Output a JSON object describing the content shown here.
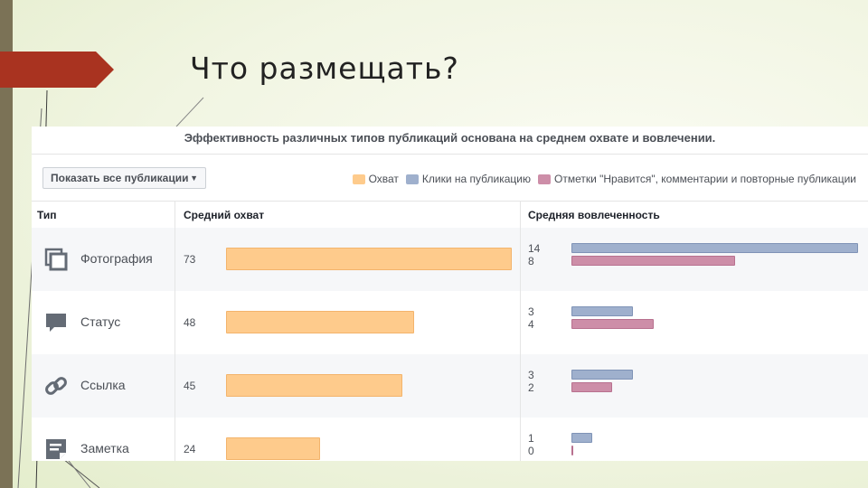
{
  "slide": {
    "title": "Что размещать?"
  },
  "panel": {
    "header": "Эффективность различных типов публикаций основана на среднем охвате и вовлечении.",
    "filter": {
      "label": "Показать все публикации",
      "caret": "▼"
    },
    "legend": [
      {
        "label": "Охват",
        "color": "#fecb8c"
      },
      {
        "label": "Клики на публикацию",
        "color": "#9fb0cd"
      },
      {
        "label": "Отметки \"Нравится\", комментарии и повторные публикации",
        "color": "#cd8ea8"
      }
    ],
    "columns": {
      "type": "Тип",
      "reach": "Средний охват",
      "engagement": "Средняя вовлеченность"
    },
    "scale": {
      "reach_max": 73,
      "engagement_max": 14
    },
    "rows": [
      {
        "icon": "photo-icon",
        "name": "Фотография",
        "reach": "73",
        "clicks": "14",
        "likes": "8"
      },
      {
        "icon": "status-icon",
        "name": "Статус",
        "reach": "48",
        "clicks": "3",
        "likes": "4"
      },
      {
        "icon": "link-icon",
        "name": "Ссылка",
        "reach": "45",
        "clicks": "3",
        "likes": "2"
      },
      {
        "icon": "note-icon",
        "name": "Заметка",
        "reach": "24",
        "clicks": "1",
        "likes": "0"
      }
    ]
  }
}
